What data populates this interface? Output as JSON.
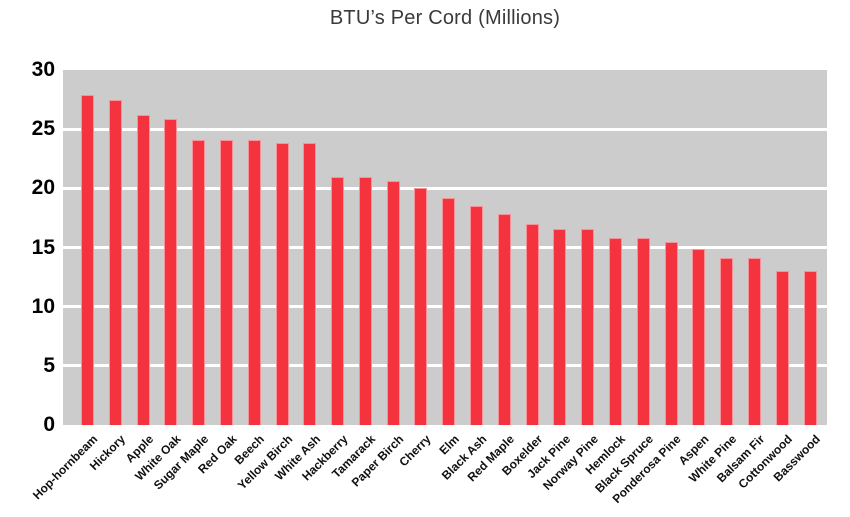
{
  "chart_data": {
    "type": "bar",
    "title": "BTU’s Per Cord (Millions)",
    "xlabel": "",
    "ylabel": "",
    "ylim": [
      0,
      30
    ],
    "yticks": [
      0,
      5,
      10,
      15,
      20,
      25,
      30
    ],
    "grid": "horizontal white gridlines at each y-tick (5-25) on gray panel",
    "legend": "none",
    "bar_orientation": "vertical",
    "categories": [
      "Hop-hornbeam",
      "Hickory",
      "Apple",
      "White Oak",
      "Sugar Maple",
      "Red Oak",
      "Beech",
      "Yellow Birch",
      "White Ash",
      "Hackberry",
      "Tamarack",
      "Paper Birch",
      "Cherry",
      "Elm",
      "Black Ash",
      "Red Maple",
      "Boxelder",
      "Jack Pine",
      "Norway Pine",
      "Hemlock",
      "Black Spruce",
      "Ponderosa Pine",
      "Aspen",
      "White Pine",
      "Balsam Fir",
      "Cottonwood",
      "Basswood"
    ],
    "values": [
      27.9,
      27.5,
      26.2,
      25.9,
      24.1,
      24.1,
      24.1,
      23.8,
      23.8,
      21.0,
      21.0,
      20.6,
      20.0,
      19.2,
      18.5,
      17.8,
      17.0,
      16.6,
      16.6,
      15.8,
      15.8,
      15.5,
      14.9,
      14.1,
      14.1,
      13.0,
      13.0
    ],
    "colors": {
      "bar_fill": "#f4333e",
      "bar_edge": "#f5939a",
      "plot_background": "#cccccc",
      "gridline": "#ffffff",
      "title_text": "#3a3a3a",
      "tick_label_text": "#000000",
      "page_background": "#ffffff"
    }
  }
}
